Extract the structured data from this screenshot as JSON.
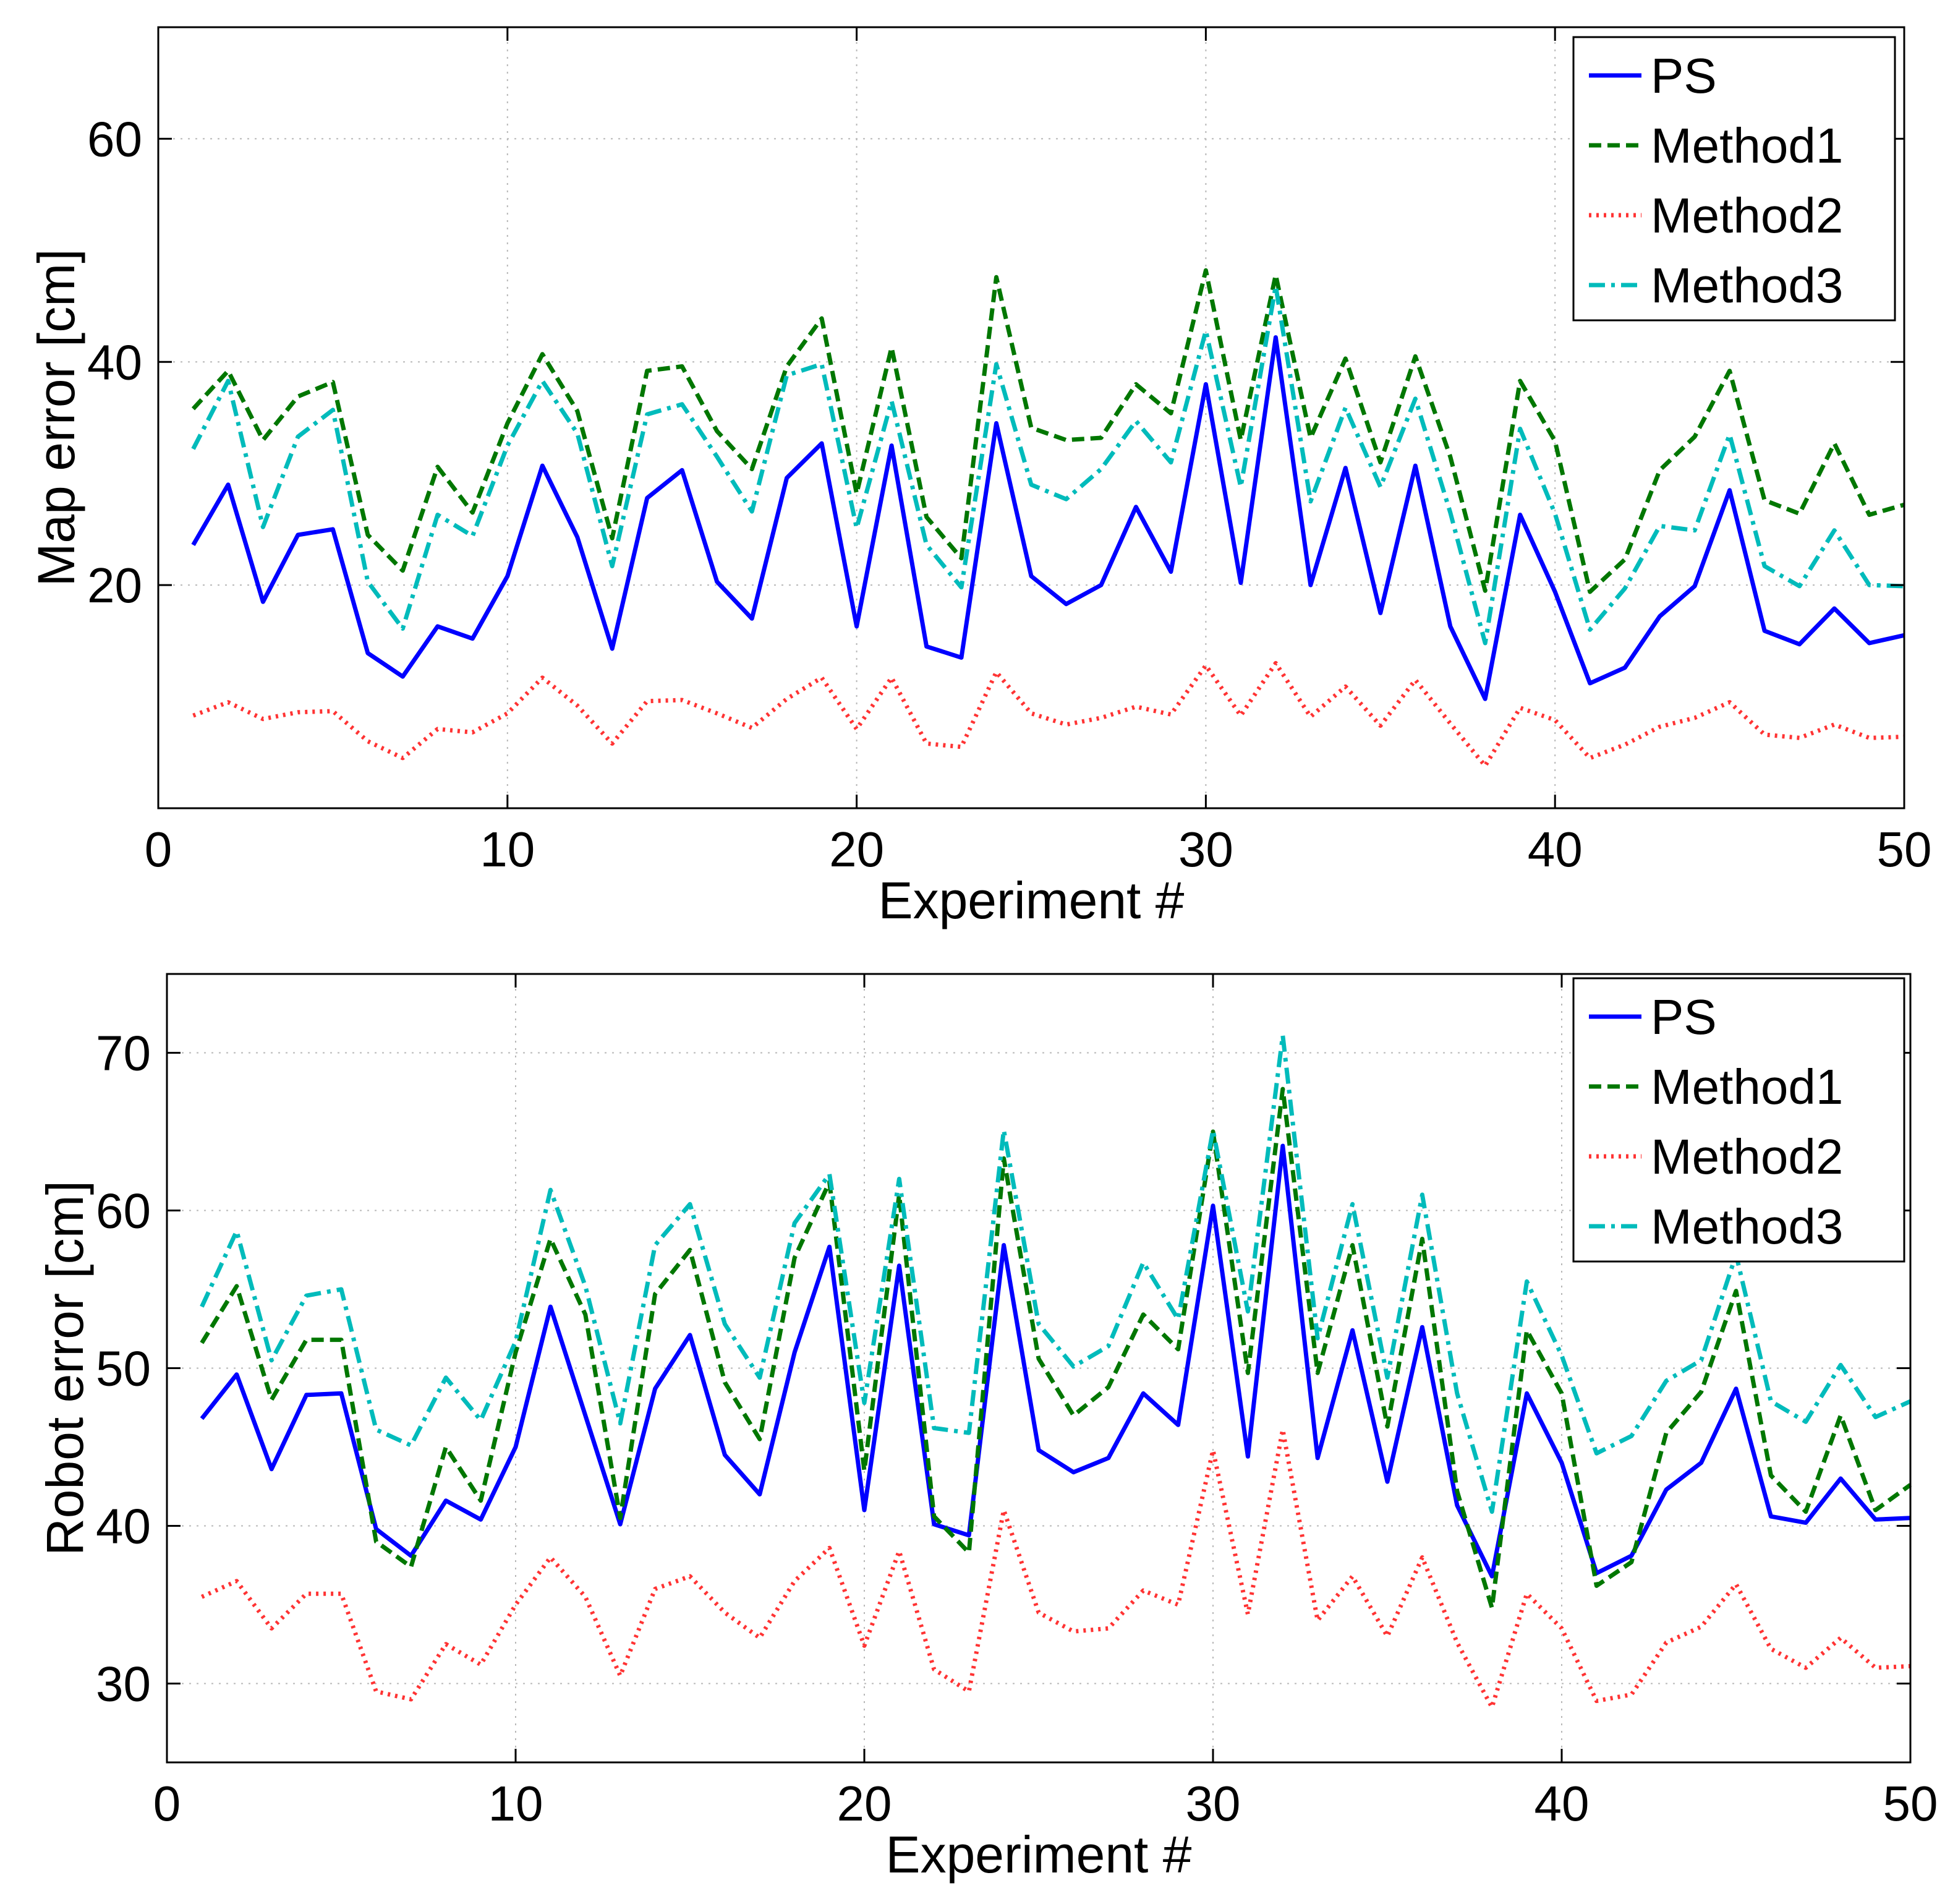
{
  "chart_data": [
    {
      "type": "line",
      "title": "",
      "xlabel": "Experiment #",
      "ylabel": "Map error [cm]",
      "xlim": [
        0,
        50
      ],
      "ylim": [
        0,
        70
      ],
      "xticks": [
        0,
        10,
        20,
        30,
        40,
        50
      ],
      "yticks": [
        20,
        40,
        60
      ],
      "grid": true,
      "legend_position": "top-right",
      "x": [
        1,
        2,
        3,
        4,
        5,
        6,
        7,
        8,
        9,
        10,
        11,
        12,
        13,
        14,
        15,
        16,
        17,
        18,
        19,
        20,
        21,
        22,
        23,
        24,
        25,
        26,
        27,
        28,
        29,
        30,
        31,
        32,
        33,
        34,
        35,
        36,
        37,
        38,
        39,
        40,
        41,
        42,
        43,
        44,
        45,
        46,
        47,
        48,
        49,
        50
      ],
      "series": [
        {
          "name": "PS",
          "color": "#0000ff",
          "style": "solid",
          "values": [
            23.6,
            29,
            18.5,
            24.5,
            25,
            13.9,
            11.8,
            16.3,
            15.2,
            20.8,
            30.7,
            24.3,
            14.3,
            27.8,
            30.3,
            20.3,
            17,
            29.6,
            32.7,
            16.3,
            32.5,
            14.5,
            13.5,
            34.5,
            20.8,
            18.3,
            20,
            27,
            21.2,
            38,
            20.2,
            42.2,
            20,
            30.5,
            17.5,
            30.7,
            16.3,
            9.8,
            26.3,
            19.4,
            11.2,
            12.6,
            17.2,
            19.9,
            28.5,
            15.9,
            14.7,
            17.9,
            14.8,
            15.5
          ]
        },
        {
          "name": "Method1",
          "color": "#007700",
          "style": "dashed",
          "values": [
            35.8,
            39.2,
            33,
            36.9,
            38.2,
            24.5,
            21.3,
            30.6,
            26.5,
            34.5,
            40.7,
            35.6,
            24.2,
            39.2,
            39.6,
            33.8,
            30.4,
            39.6,
            43.9,
            28.2,
            41.3,
            26.1,
            22.4,
            47.6,
            34.1,
            33,
            33.2,
            38,
            35.4,
            48.2,
            33,
            47.8,
            33.2,
            40.3,
            31,
            40.5,
            31.5,
            19.5,
            38.3,
            32.9,
            19.4,
            22.3,
            30.3,
            33.3,
            39.2,
            27.6,
            26.4,
            32.7,
            26.3,
            27.2
          ]
        },
        {
          "name": "Method2",
          "color": "#ff3333",
          "style": "dotted",
          "values": [
            8.3,
            9.5,
            8,
            8.6,
            8.7,
            6,
            4.5,
            7.1,
            6.8,
            8.5,
            11.7,
            9.2,
            5.8,
            9.6,
            9.7,
            8.5,
            7.2,
            9.8,
            11.7,
            7.1,
            11.7,
            5.8,
            5.5,
            12.2,
            8.5,
            7.5,
            8.1,
            9.1,
            8.4,
            12.8,
            8.3,
            13,
            8.2,
            10.9,
            7.4,
            11.5,
            7.6,
            3.8,
            9,
            7.9,
            4.5,
            5.7,
            7.3,
            8.1,
            9.5,
            6.6,
            6.3,
            7.5,
            6.3,
            6.4
          ]
        },
        {
          "name": "Method3",
          "color": "#00bbbb",
          "style": "dashdot",
          "values": [
            32.2,
            38.3,
            25.2,
            33.3,
            35.7,
            20.3,
            16.1,
            26.3,
            24.4,
            32.5,
            38.3,
            33.6,
            21.7,
            35.3,
            36.2,
            31.5,
            26.6,
            38.8,
            39.8,
            25.1,
            36.5,
            23.6,
            19.8,
            39.8,
            29,
            27.7,
            30.4,
            34.7,
            31,
            42.8,
            28.8,
            46.8,
            27.5,
            35.9,
            28.8,
            36.7,
            26.5,
            14.8,
            34,
            26.4,
            16,
            19.7,
            25.3,
            24.9,
            33.5,
            21.7,
            19.9,
            24.9,
            20,
            19.9
          ]
        }
      ]
    },
    {
      "type": "line",
      "title": "",
      "xlabel": "Experiment #",
      "ylabel": "Robot error [cm]",
      "xlim": [
        0,
        50
      ],
      "ylim": [
        25,
        75
      ],
      "xticks": [
        0,
        10,
        20,
        30,
        40,
        50
      ],
      "yticks": [
        30,
        40,
        50,
        60,
        70
      ],
      "grid": true,
      "legend_position": "top-right",
      "x": [
        1,
        2,
        3,
        4,
        5,
        6,
        7,
        8,
        9,
        10,
        11,
        12,
        13,
        14,
        15,
        16,
        17,
        18,
        19,
        20,
        21,
        22,
        23,
        24,
        25,
        26,
        27,
        28,
        29,
        30,
        31,
        32,
        33,
        34,
        35,
        36,
        37,
        38,
        39,
        40,
        41,
        42,
        43,
        44,
        45,
        46,
        47,
        48,
        49,
        50
      ],
      "series": [
        {
          "name": "PS",
          "color": "#0000ff",
          "style": "solid",
          "values": [
            46.8,
            49.6,
            43.6,
            48.3,
            48.4,
            39.8,
            38.1,
            41.6,
            40.4,
            45,
            53.9,
            47,
            40.1,
            48.7,
            52.1,
            44.5,
            42,
            51,
            57.7,
            41,
            56.5,
            40.1,
            39.4,
            57.8,
            44.8,
            43.4,
            44.3,
            48.4,
            46.4,
            60.3,
            44.4,
            64.1,
            44.3,
            52.4,
            42.8,
            52.6,
            41.3,
            36.8,
            48.4,
            44,
            37,
            38.1,
            42.3,
            44,
            48.7,
            40.6,
            40.2,
            43,
            40.4,
            40.5
          ]
        },
        {
          "name": "Method1",
          "color": "#007700",
          "style": "dashed",
          "values": [
            51.6,
            55.2,
            48,
            51.8,
            51.8,
            39,
            37.4,
            45,
            41.6,
            51,
            58.2,
            53.4,
            40.5,
            54.7,
            57.5,
            49.1,
            45.5,
            57,
            61.8,
            43.5,
            61,
            40.6,
            38.3,
            63.3,
            50.6,
            47,
            48.8,
            53.4,
            51.2,
            65,
            49.7,
            67.7,
            49.7,
            57.8,
            46.3,
            58.2,
            42.2,
            34.8,
            52.4,
            48.4,
            36.2,
            37.7,
            45.9,
            48.5,
            54.9,
            43.2,
            40.9,
            47,
            41,
            42.6
          ]
        },
        {
          "name": "Method2",
          "color": "#ff3333",
          "style": "dotted",
          "values": [
            35.5,
            36.5,
            33.5,
            35.7,
            35.7,
            29.5,
            29,
            32.5,
            31.2,
            35,
            38,
            35.5,
            30.5,
            36,
            36.8,
            34.5,
            32.9,
            36.5,
            38.6,
            32.4,
            38.4,
            30.9,
            29.5,
            41,
            34.5,
            33.3,
            33.5,
            35.9,
            35,
            44.8,
            34.4,
            46.1,
            34,
            36.8,
            33,
            38,
            32.6,
            28.5,
            35.7,
            33.5,
            28.9,
            29.3,
            32.6,
            33.6,
            36.3,
            32.2,
            31,
            32.9,
            31,
            31.1
          ]
        },
        {
          "name": "Method3",
          "color": "#00bbbb",
          "style": "dashdot",
          "values": [
            53.9,
            58.7,
            50.5,
            54.6,
            55,
            46.1,
            45.1,
            49.4,
            46.7,
            51.7,
            61.3,
            55.2,
            46.5,
            57.8,
            60.4,
            52.8,
            49.4,
            59.2,
            62.3,
            47.8,
            62,
            46.2,
            45.9,
            65.1,
            52.8,
            50.1,
            51.4,
            56.7,
            53.1,
            65.1,
            53.6,
            71.1,
            51.9,
            60.4,
            49.4,
            61,
            48.4,
            40.9,
            55.5,
            50.8,
            44.6,
            45.7,
            49.2,
            50.5,
            57.2,
            47.9,
            46.6,
            50.2,
            46.9,
            47.9
          ]
        }
      ]
    }
  ]
}
